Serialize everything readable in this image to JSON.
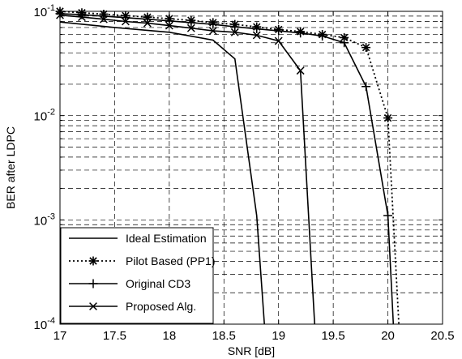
{
  "chart_data": {
    "type": "line",
    "xlabel": "SNR [dB]",
    "ylabel": "BER after LDPC",
    "xlim": [
      17,
      20.5
    ],
    "ylim": [
      0.0001,
      0.1
    ],
    "yscale": "log",
    "grid": true,
    "legend_position": "bottom-left",
    "x_ticks": [
      {
        "v": 17,
        "label": "17"
      },
      {
        "v": 17.5,
        "label": "17.5"
      },
      {
        "v": 18,
        "label": "18"
      },
      {
        "v": 18.5,
        "label": "18.5"
      },
      {
        "v": 19,
        "label": "19"
      },
      {
        "v": 19.5,
        "label": "19.5"
      },
      {
        "v": 20,
        "label": "20"
      },
      {
        "v": 20.5,
        "label": "20.5"
      }
    ],
    "y_ticks": [
      {
        "v": 0.1,
        "base": "10",
        "exp": "-1"
      },
      {
        "v": 0.01,
        "base": "10",
        "exp": "-2"
      },
      {
        "v": 0.001,
        "base": "10",
        "exp": "-3"
      },
      {
        "v": 0.0001,
        "base": "10",
        "exp": "-4"
      }
    ],
    "series": [
      {
        "name": "Ideal Estimation",
        "style": "solid",
        "marker": "none",
        "x": [
          17,
          17.5,
          18,
          18.4,
          18.6,
          18.8,
          18.87
        ],
        "y": [
          0.079,
          0.07,
          0.063,
          0.053,
          0.035,
          0.0011,
          0.0001
        ]
      },
      {
        "name": "Pilot Based (PP1)",
        "style": "dotted",
        "marker": "asterisk",
        "x": [
          17,
          17.2,
          17.4,
          17.6,
          17.8,
          18,
          18.2,
          18.4,
          18.6,
          18.8,
          19,
          19.2,
          19.4,
          19.6,
          19.8,
          20,
          20.1
        ],
        "y": [
          0.1,
          0.097,
          0.094,
          0.091,
          0.088,
          0.085,
          0.082,
          0.078,
          0.075,
          0.071,
          0.067,
          0.064,
          0.06,
          0.056,
          0.045,
          0.0095,
          0.0001
        ]
      },
      {
        "name": "Original CD3",
        "style": "solid",
        "marker": "plus",
        "x": [
          17,
          17.2,
          17.4,
          17.6,
          17.8,
          18,
          18.2,
          18.4,
          18.6,
          18.8,
          19,
          19.2,
          19.4,
          19.6,
          19.8,
          20,
          20.05
        ],
        "y": [
          0.095,
          0.093,
          0.09,
          0.087,
          0.084,
          0.081,
          0.078,
          0.075,
          0.071,
          0.068,
          0.065,
          0.062,
          0.058,
          0.05,
          0.019,
          0.0011,
          0.0001
        ]
      },
      {
        "name": "Proposed Alg.",
        "style": "solid",
        "marker": "x",
        "x": [
          17,
          17.2,
          17.4,
          17.6,
          17.8,
          18,
          18.2,
          18.4,
          18.6,
          18.8,
          19,
          19.2,
          19.33
        ],
        "y": [
          0.092,
          0.088,
          0.084,
          0.08,
          0.077,
          0.073,
          0.069,
          0.065,
          0.063,
          0.059,
          0.052,
          0.027,
          0.0001
        ]
      }
    ]
  }
}
